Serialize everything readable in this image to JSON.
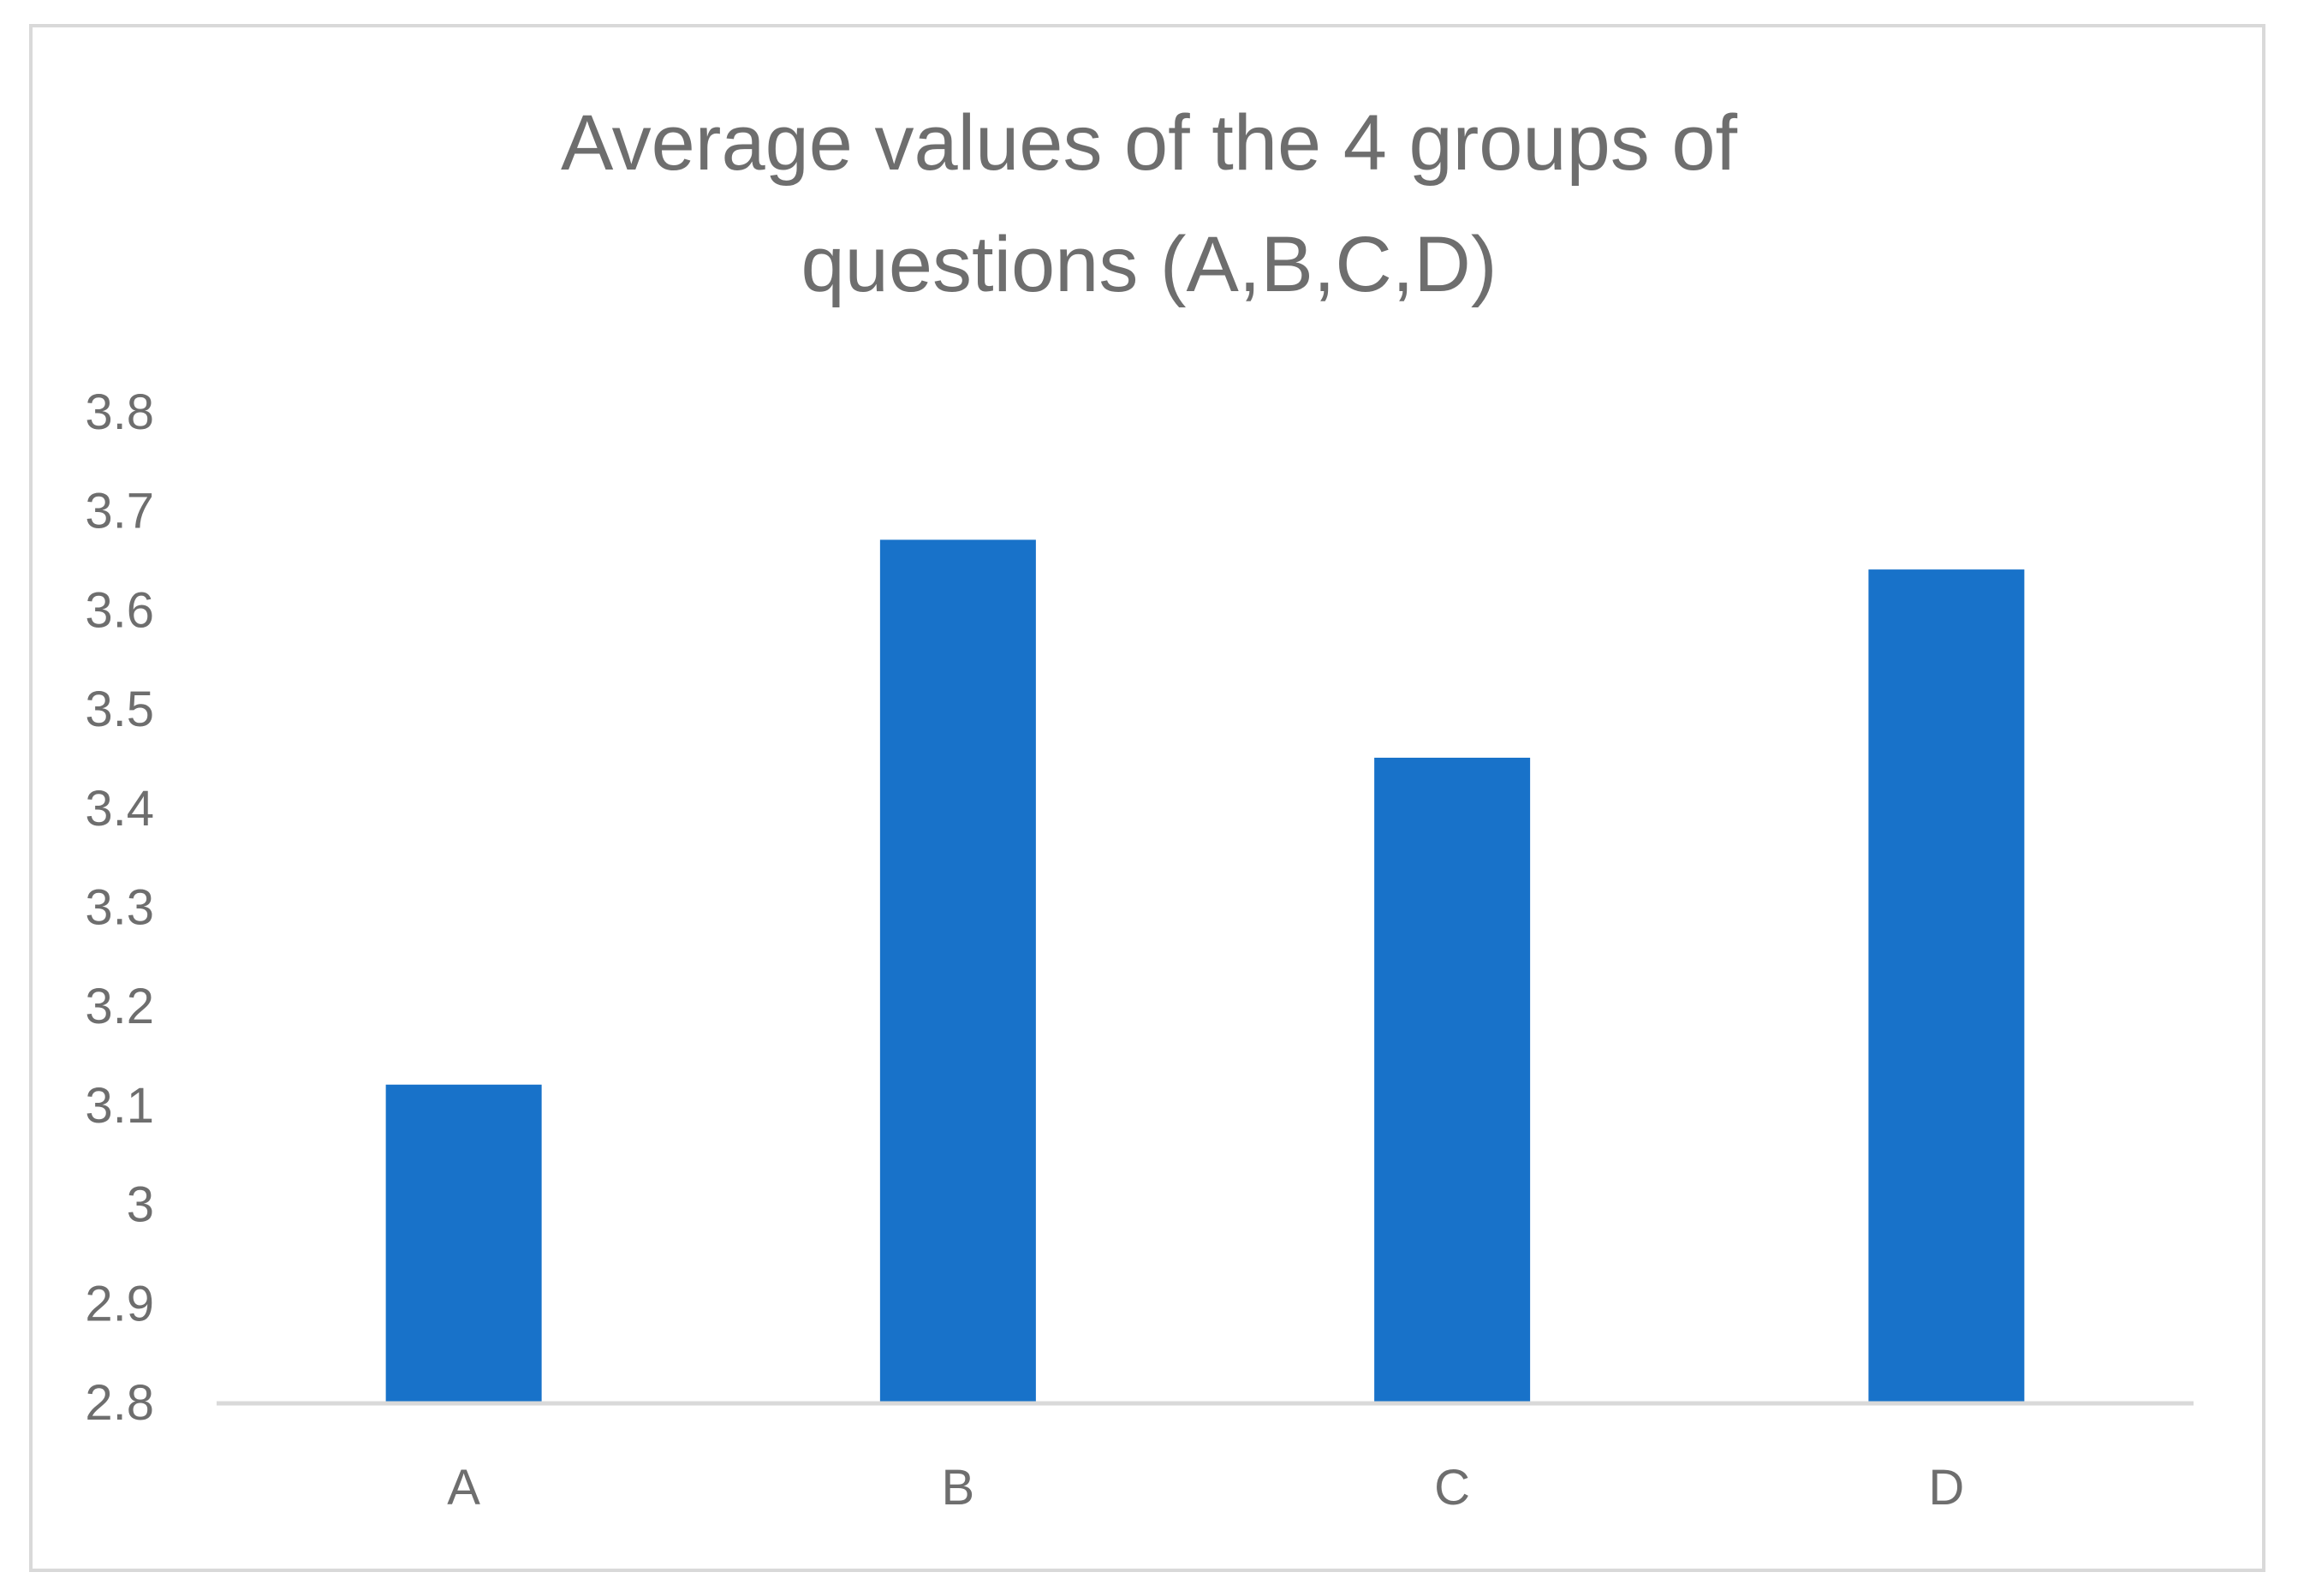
{
  "chart_data": {
    "type": "bar",
    "title_lines": [
      "Average values of the 4 groups of",
      "questions (A,B,C,D)"
    ],
    "categories": [
      "A",
      "B",
      "C",
      "D"
    ],
    "values": [
      3.12,
      3.67,
      3.45,
      3.64
    ],
    "ylim": [
      2.8,
      3.8
    ],
    "yticks": [
      "3.8",
      "3.7",
      "3.6",
      "3.5",
      "3.4",
      "3.3",
      "3.2",
      "3.1",
      "3",
      "2.9",
      "2.8"
    ],
    "ytick_values": [
      3.8,
      3.7,
      3.6,
      3.5,
      3.4,
      3.3,
      3.2,
      3.1,
      3.0,
      2.9,
      2.8
    ],
    "xlabel": "",
    "ylabel": "",
    "grid": false,
    "legend": "none",
    "bar_color": "#1872c9",
    "text_color": "#6e6e6e",
    "axis_color": "#d9d9d9"
  }
}
